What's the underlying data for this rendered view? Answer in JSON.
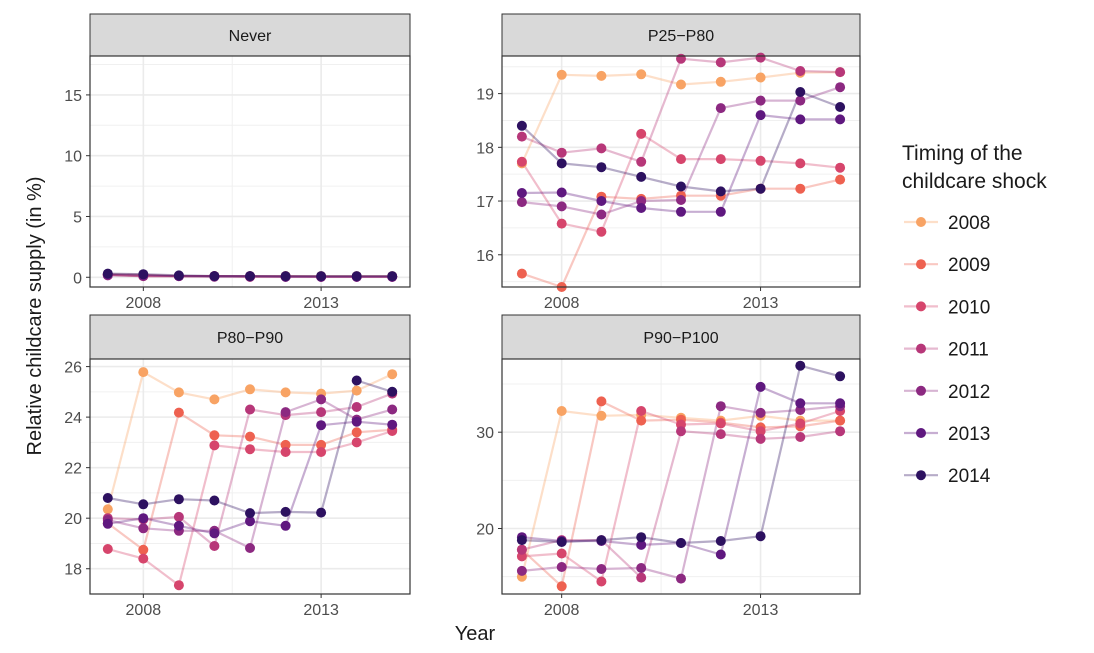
{
  "chart_data": {
    "type": "line",
    "xlabel": "Year",
    "ylabel": "Relative childcare supply (in %)",
    "x_ticks": [
      2008,
      2013
    ],
    "x_range": [
      2006.5,
      2015.5
    ],
    "legend": {
      "title_lines": [
        "Timing of the",
        "childcare shock"
      ],
      "position": "right"
    },
    "series_meta": [
      {
        "name": "2008",
        "color": "#f8a364"
      },
      {
        "name": "2009",
        "color": "#ee6150"
      },
      {
        "name": "2010",
        "color": "#d6456c"
      },
      {
        "name": "2011",
        "color": "#b73779"
      },
      {
        "name": "2012",
        "color": "#8c2981"
      },
      {
        "name": "2013",
        "color": "#5f187f"
      },
      {
        "name": "2014",
        "color": "#2d1160"
      }
    ],
    "panels": [
      {
        "title": "Never",
        "ylim": [
          -0.8,
          18.2
        ],
        "y_ticks": [
          0,
          5,
          10,
          15
        ],
        "series": [
          {
            "name": "2008",
            "x": [
              2007,
              2008,
              2009,
              2010,
              2011,
              2012,
              2013,
              2014,
              2015
            ],
            "y": [
              0.25,
              0.2,
              0.1,
              0.1,
              0.1,
              0.1,
              0.1,
              0.1,
              0.1
            ]
          },
          {
            "name": "2009",
            "x": [
              2007,
              2008,
              2009,
              2010,
              2011,
              2012,
              2013,
              2014,
              2015
            ],
            "y": [
              0.2,
              0.1,
              0.1,
              0.1,
              0.05,
              0.05,
              0.05,
              0.05,
              0.05
            ]
          },
          {
            "name": "2010",
            "x": [
              2007,
              2008,
              2009,
              2010,
              2011,
              2012,
              2013,
              2014,
              2015
            ],
            "y": [
              0.2,
              0.15,
              0.1,
              0.1,
              0.1,
              0.1,
              0.05,
              0.05,
              0.05
            ]
          },
          {
            "name": "2011",
            "x": [
              2007,
              2008,
              2009,
              2010,
              2011,
              2012,
              2013,
              2014,
              2015
            ],
            "y": [
              0.2,
              0.1,
              0.1,
              0.1,
              0.05,
              0.05,
              0.05,
              0.05,
              0.05
            ]
          },
          {
            "name": "2012",
            "x": [
              2007,
              2008,
              2009,
              2010,
              2011,
              2012,
              2013,
              2014,
              2015
            ],
            "y": [
              0.15,
              0.1,
              0.1,
              0.05,
              0.05,
              0.05,
              0.05,
              0.05,
              0.05
            ]
          },
          {
            "name": "2013",
            "x": [
              2007,
              2008,
              2009,
              2010,
              2011,
              2012,
              2013,
              2014,
              2015
            ],
            "y": [
              0.25,
              0.2,
              0.1,
              0.1,
              0.1,
              0.05,
              0.05,
              0.05,
              0.05
            ]
          },
          {
            "name": "2014",
            "x": [
              2007,
              2008,
              2009,
              2010,
              2011,
              2012,
              2013,
              2014,
              2015
            ],
            "y": [
              0.3,
              0.25,
              0.15,
              0.1,
              0.1,
              0.1,
              0.1,
              0.1,
              0.1
            ]
          }
        ]
      },
      {
        "title": "P25−P80",
        "ylim": [
          15.4,
          19.7
        ],
        "y_ticks": [
          16,
          17,
          18,
          19
        ],
        "series": [
          {
            "name": "2008",
            "x": [
              2007,
              2008,
              2009,
              2010,
              2011,
              2012,
              2013,
              2014,
              2015
            ],
            "y": [
              17.7,
              19.35,
              19.33,
              19.36,
              19.17,
              19.22,
              19.3,
              19.39,
              19.4
            ]
          },
          {
            "name": "2009",
            "x": [
              2007,
              2008,
              2009,
              2010,
              2011,
              2012,
              2013,
              2014,
              2015
            ],
            "y": [
              15.65,
              15.4,
              17.08,
              17.04,
              17.1,
              17.1,
              17.23,
              17.23,
              17.4
            ]
          },
          {
            "name": "2010",
            "x": [
              2007,
              2008,
              2009,
              2010,
              2011,
              2012,
              2013,
              2014,
              2015
            ],
            "y": [
              17.73,
              16.58,
              16.43,
              18.25,
              17.78,
              17.78,
              17.75,
              17.7,
              17.62
            ]
          },
          {
            "name": "2011",
            "x": [
              2007,
              2008,
              2009,
              2010,
              2011,
              2012,
              2013,
              2014,
              2015
            ],
            "y": [
              18.2,
              17.9,
              17.98,
              17.73,
              19.65,
              19.58,
              19.67,
              19.42,
              19.4
            ]
          },
          {
            "name": "2012",
            "x": [
              2007,
              2008,
              2009,
              2010,
              2011,
              2012,
              2013,
              2014,
              2015
            ],
            "y": [
              16.98,
              16.9,
              16.75,
              17.0,
              17.02,
              18.73,
              18.87,
              18.87,
              19.12
            ]
          },
          {
            "name": "2013",
            "x": [
              2007,
              2008,
              2009,
              2010,
              2011,
              2012,
              2013,
              2014,
              2015
            ],
            "y": [
              17.15,
              17.16,
              17.0,
              16.87,
              16.8,
              16.8,
              18.6,
              18.52,
              18.52
            ]
          },
          {
            "name": "2014",
            "x": [
              2007,
              2008,
              2009,
              2010,
              2011,
              2012,
              2013,
              2014,
              2015
            ],
            "y": [
              18.4,
              17.7,
              17.63,
              17.45,
              17.27,
              17.18,
              17.23,
              19.03,
              18.75
            ]
          }
        ]
      },
      {
        "title": "P80−P90",
        "ylim": [
          17.0,
          26.3
        ],
        "y_ticks": [
          18,
          20,
          22,
          24,
          26
        ],
        "series": [
          {
            "name": "2008",
            "x": [
              2007,
              2008,
              2009,
              2010,
              2011,
              2012,
              2013,
              2014,
              2015
            ],
            "y": [
              20.35,
              25.78,
              24.98,
              24.7,
              25.1,
              24.98,
              24.93,
              25.05,
              25.7
            ]
          },
          {
            "name": "2009",
            "x": [
              2007,
              2008,
              2009,
              2010,
              2011,
              2012,
              2013,
              2014,
              2015
            ],
            "y": [
              19.8,
              18.75,
              24.18,
              23.28,
              23.23,
              22.9,
              22.9,
              23.4,
              23.5
            ]
          },
          {
            "name": "2010",
            "x": [
              2007,
              2008,
              2009,
              2010,
              2011,
              2012,
              2013,
              2014,
              2015
            ],
            "y": [
              18.78,
              18.4,
              17.35,
              22.88,
              22.73,
              22.62,
              22.62,
              23.0,
              23.45
            ]
          },
          {
            "name": "2011",
            "x": [
              2007,
              2008,
              2009,
              2010,
              2011,
              2012,
              2013,
              2014,
              2015
            ],
            "y": [
              20.0,
              19.95,
              20.05,
              18.9,
              24.3,
              24.08,
              24.2,
              24.4,
              24.93
            ]
          },
          {
            "name": "2012",
            "x": [
              2007,
              2008,
              2009,
              2010,
              2011,
              2012,
              2013,
              2014,
              2015
            ],
            "y": [
              19.93,
              19.6,
              19.5,
              19.5,
              18.82,
              24.2,
              24.7,
              23.9,
              24.3
            ]
          },
          {
            "name": "2013",
            "x": [
              2007,
              2008,
              2009,
              2010,
              2011,
              2012,
              2013,
              2014,
              2015
            ],
            "y": [
              19.78,
              20.0,
              19.7,
              19.4,
              19.88,
              19.7,
              23.68,
              23.82,
              23.7
            ]
          },
          {
            "name": "2014",
            "x": [
              2007,
              2008,
              2009,
              2010,
              2011,
              2012,
              2013,
              2014,
              2015
            ],
            "y": [
              20.8,
              20.55,
              20.75,
              20.7,
              20.2,
              20.25,
              20.22,
              25.45,
              25.0
            ]
          }
        ]
      },
      {
        "title": "P90−P100",
        "ylim": [
          13.2,
          37.6
        ],
        "y_ticks": [
          20,
          30
        ],
        "series": [
          {
            "name": "2008",
            "x": [
              2007,
              2008,
              2009,
              2010,
              2011,
              2012,
              2013,
              2014,
              2015
            ],
            "y": [
              15.0,
              32.2,
              31.7,
              31.8,
              31.5,
              31.2,
              31.7,
              31.2,
              31.2
            ]
          },
          {
            "name": "2009",
            "x": [
              2007,
              2008,
              2009,
              2010,
              2011,
              2012,
              2013,
              2014,
              2015
            ],
            "y": [
              17.8,
              14.0,
              33.2,
              31.2,
              31.3,
              31.0,
              30.5,
              30.6,
              31.2
            ]
          },
          {
            "name": "2010",
            "x": [
              2007,
              2008,
              2009,
              2010,
              2011,
              2012,
              2013,
              2014,
              2015
            ],
            "y": [
              17.1,
              17.4,
              14.5,
              32.2,
              30.8,
              30.9,
              30.1,
              30.9,
              32.2
            ]
          },
          {
            "name": "2011",
            "x": [
              2007,
              2008,
              2009,
              2010,
              2011,
              2012,
              2013,
              2014,
              2015
            ],
            "y": [
              17.8,
              18.8,
              18.8,
              14.9,
              30.1,
              29.8,
              29.3,
              29.5,
              30.1
            ]
          },
          {
            "name": "2012",
            "x": [
              2007,
              2008,
              2009,
              2010,
              2011,
              2012,
              2013,
              2014,
              2015
            ],
            "y": [
              15.6,
              16.0,
              15.8,
              15.9,
              14.8,
              32.7,
              32.0,
              32.3,
              32.7
            ]
          },
          {
            "name": "2013",
            "x": [
              2007,
              2008,
              2009,
              2010,
              2011,
              2012,
              2013,
              2014,
              2015
            ],
            "y": [
              19.1,
              18.7,
              18.7,
              18.3,
              18.5,
              17.3,
              34.7,
              33.0,
              33.0
            ]
          },
          {
            "name": "2014",
            "x": [
              2007,
              2008,
              2009,
              2010,
              2011,
              2012,
              2013,
              2014,
              2015
            ],
            "y": [
              18.8,
              18.6,
              18.8,
              19.1,
              18.5,
              18.7,
              19.2,
              36.9,
              35.8
            ]
          }
        ]
      }
    ]
  }
}
